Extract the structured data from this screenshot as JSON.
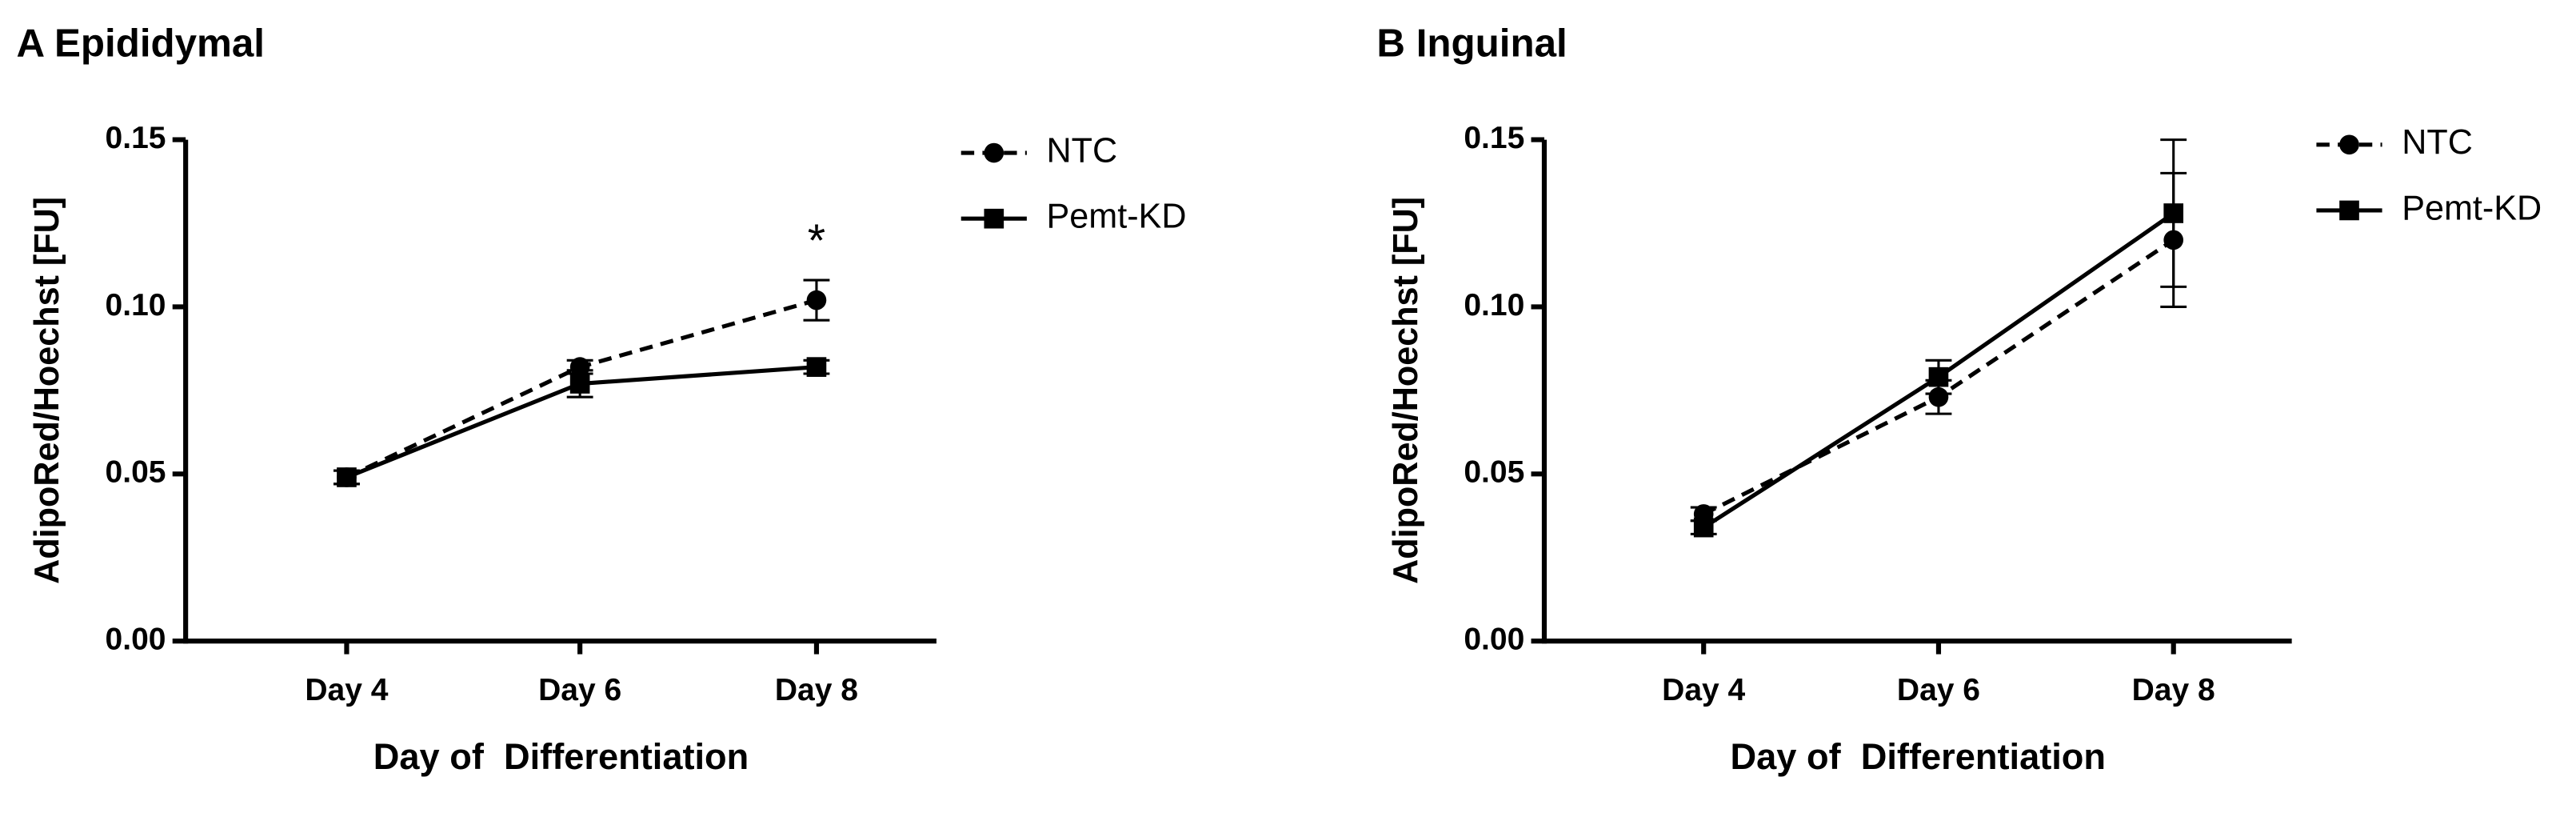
{
  "chart_data": [
    {
      "type": "line",
      "title": "A Epididymal",
      "categories": [
        "Day 4",
        "Day 6",
        "Day 8"
      ],
      "x_label": "Day of  Differentiation",
      "y_label": "AdipoRed/Hoechst [FU]",
      "ylim": [
        0,
        0.15
      ],
      "yticks": [
        {
          "value": 0,
          "label": "0.00"
        },
        {
          "value": 0.05,
          "label": "0.05"
        },
        {
          "value": 0.1,
          "label": "0.10"
        },
        {
          "value": 0.15,
          "label": "0.15"
        }
      ],
      "legend": "right",
      "annotations": [
        {
          "text": "*",
          "x": "Day 8"
        }
      ],
      "series": [
        {
          "name": "NTC",
          "color": "#000000",
          "marker": "circle",
          "line_style": "dashed",
          "values": [
            0.049,
            0.082,
            0.102
          ],
          "errors": [
            0.002,
            0.002,
            0.006
          ]
        },
        {
          "name": "Pemt-KD",
          "color": "#000000",
          "marker": "square",
          "line_style": "solid",
          "values": [
            0.049,
            0.077,
            0.082
          ],
          "errors": [
            0.002,
            0.004,
            0.002
          ]
        }
      ]
    },
    {
      "type": "line",
      "title": "B Inguinal",
      "categories": [
        "Day 4",
        "Day 6",
        "Day 8"
      ],
      "x_label": "Day of  Differentiation",
      "y_label": "AdipoRed/Hoechst [FU]",
      "ylim": [
        0,
        0.15
      ],
      "yticks": [
        {
          "value": 0,
          "label": "0.00"
        },
        {
          "value": 0.05,
          "label": "0.05"
        },
        {
          "value": 0.1,
          "label": "0.10"
        },
        {
          "value": 0.15,
          "label": "0.15"
        }
      ],
      "legend": "right",
      "annotations": [],
      "series": [
        {
          "name": "NTC",
          "color": "#000000",
          "marker": "circle",
          "line_style": "dashed",
          "values": [
            0.038,
            0.073,
            0.12
          ],
          "errors": [
            0.002,
            0.005,
            0.02
          ]
        },
        {
          "name": "Pemt-KD",
          "color": "#000000",
          "marker": "square",
          "line_style": "solid",
          "values": [
            0.034,
            0.079,
            0.128
          ],
          "errors": [
            0.002,
            0.005,
            0.022
          ]
        }
      ]
    }
  ]
}
